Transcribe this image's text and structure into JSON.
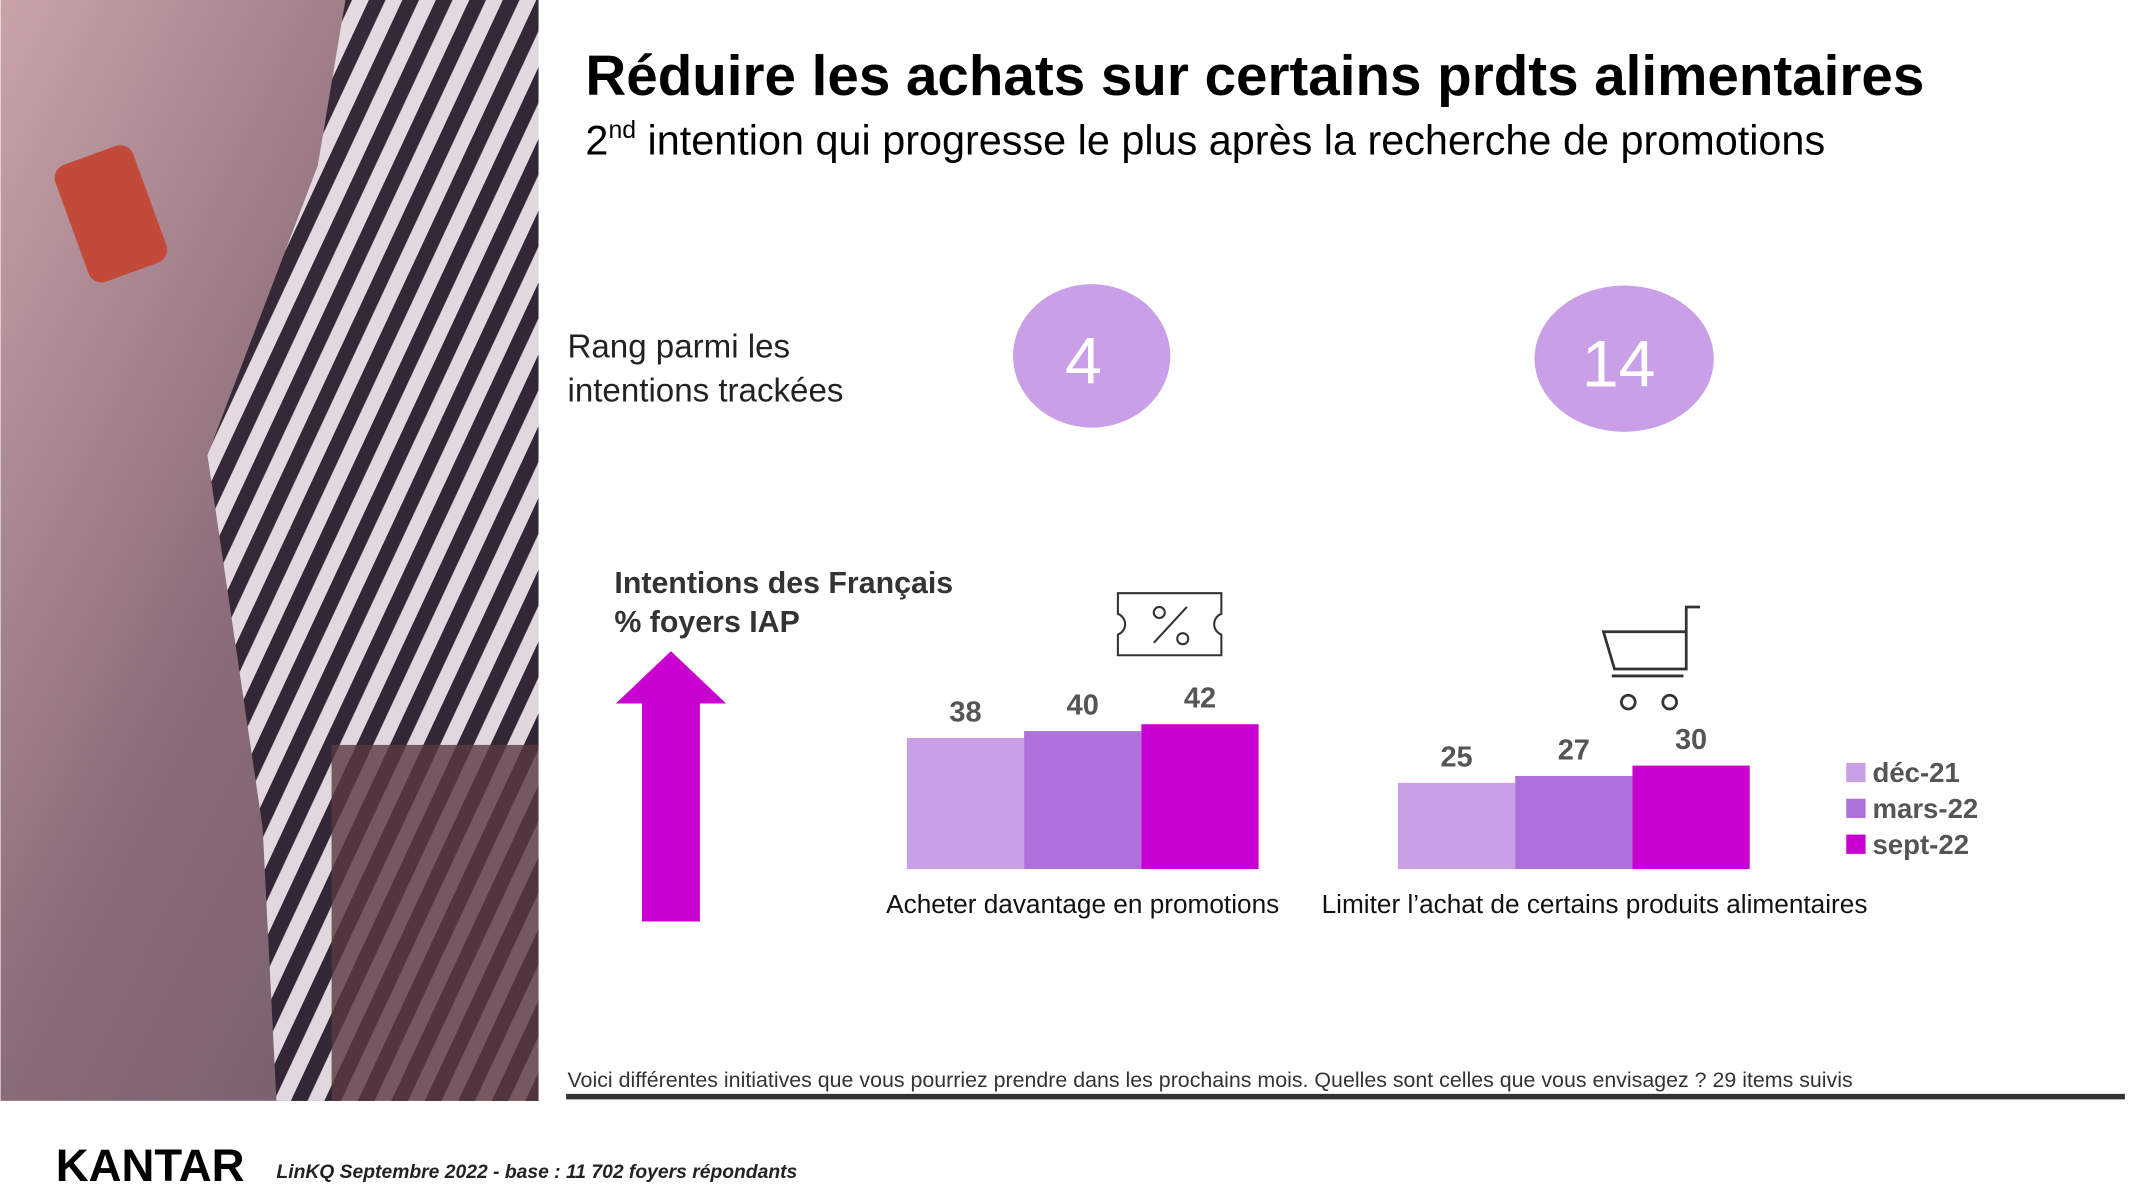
{
  "slide": {
    "title": "Réduire les achats sur certains prdts alimentaires",
    "subtitle_number": "2",
    "subtitle_sup": "nd",
    "subtitle_rest": " intention qui progresse le plus après la recherche de promotions",
    "rank_label": [
      "Rang parmi les",
      "intentions trackées"
    ],
    "ranks": [
      4,
      14
    ],
    "measure_label": [
      "Intentions des Français",
      "% foyers IAP"
    ],
    "question": "Voici différentes initiatives que vous pourriez prendre dans les prochains mois. Quelles sont celles que vous envisagez ? 29 items suivis",
    "logo": "KANTAR",
    "source": "LinKQ Septembre 2022 - base : 11 702  foyers répondants"
  },
  "chart_data": {
    "type": "bar",
    "categories": [
      "Acheter davantage en promotions",
      "Limiter l’achat de certains produits alimentaires"
    ],
    "series": [
      {
        "name": "déc-21",
        "color": "#c9a0e8",
        "values": [
          38,
          25
        ]
      },
      {
        "name": "mars-22",
        "color": "#b070dc",
        "values": [
          40,
          27
        ]
      },
      {
        "name": "sept-22",
        "color": "#c800d0",
        "values": [
          42,
          30
        ]
      }
    ],
    "legend": "right"
  }
}
